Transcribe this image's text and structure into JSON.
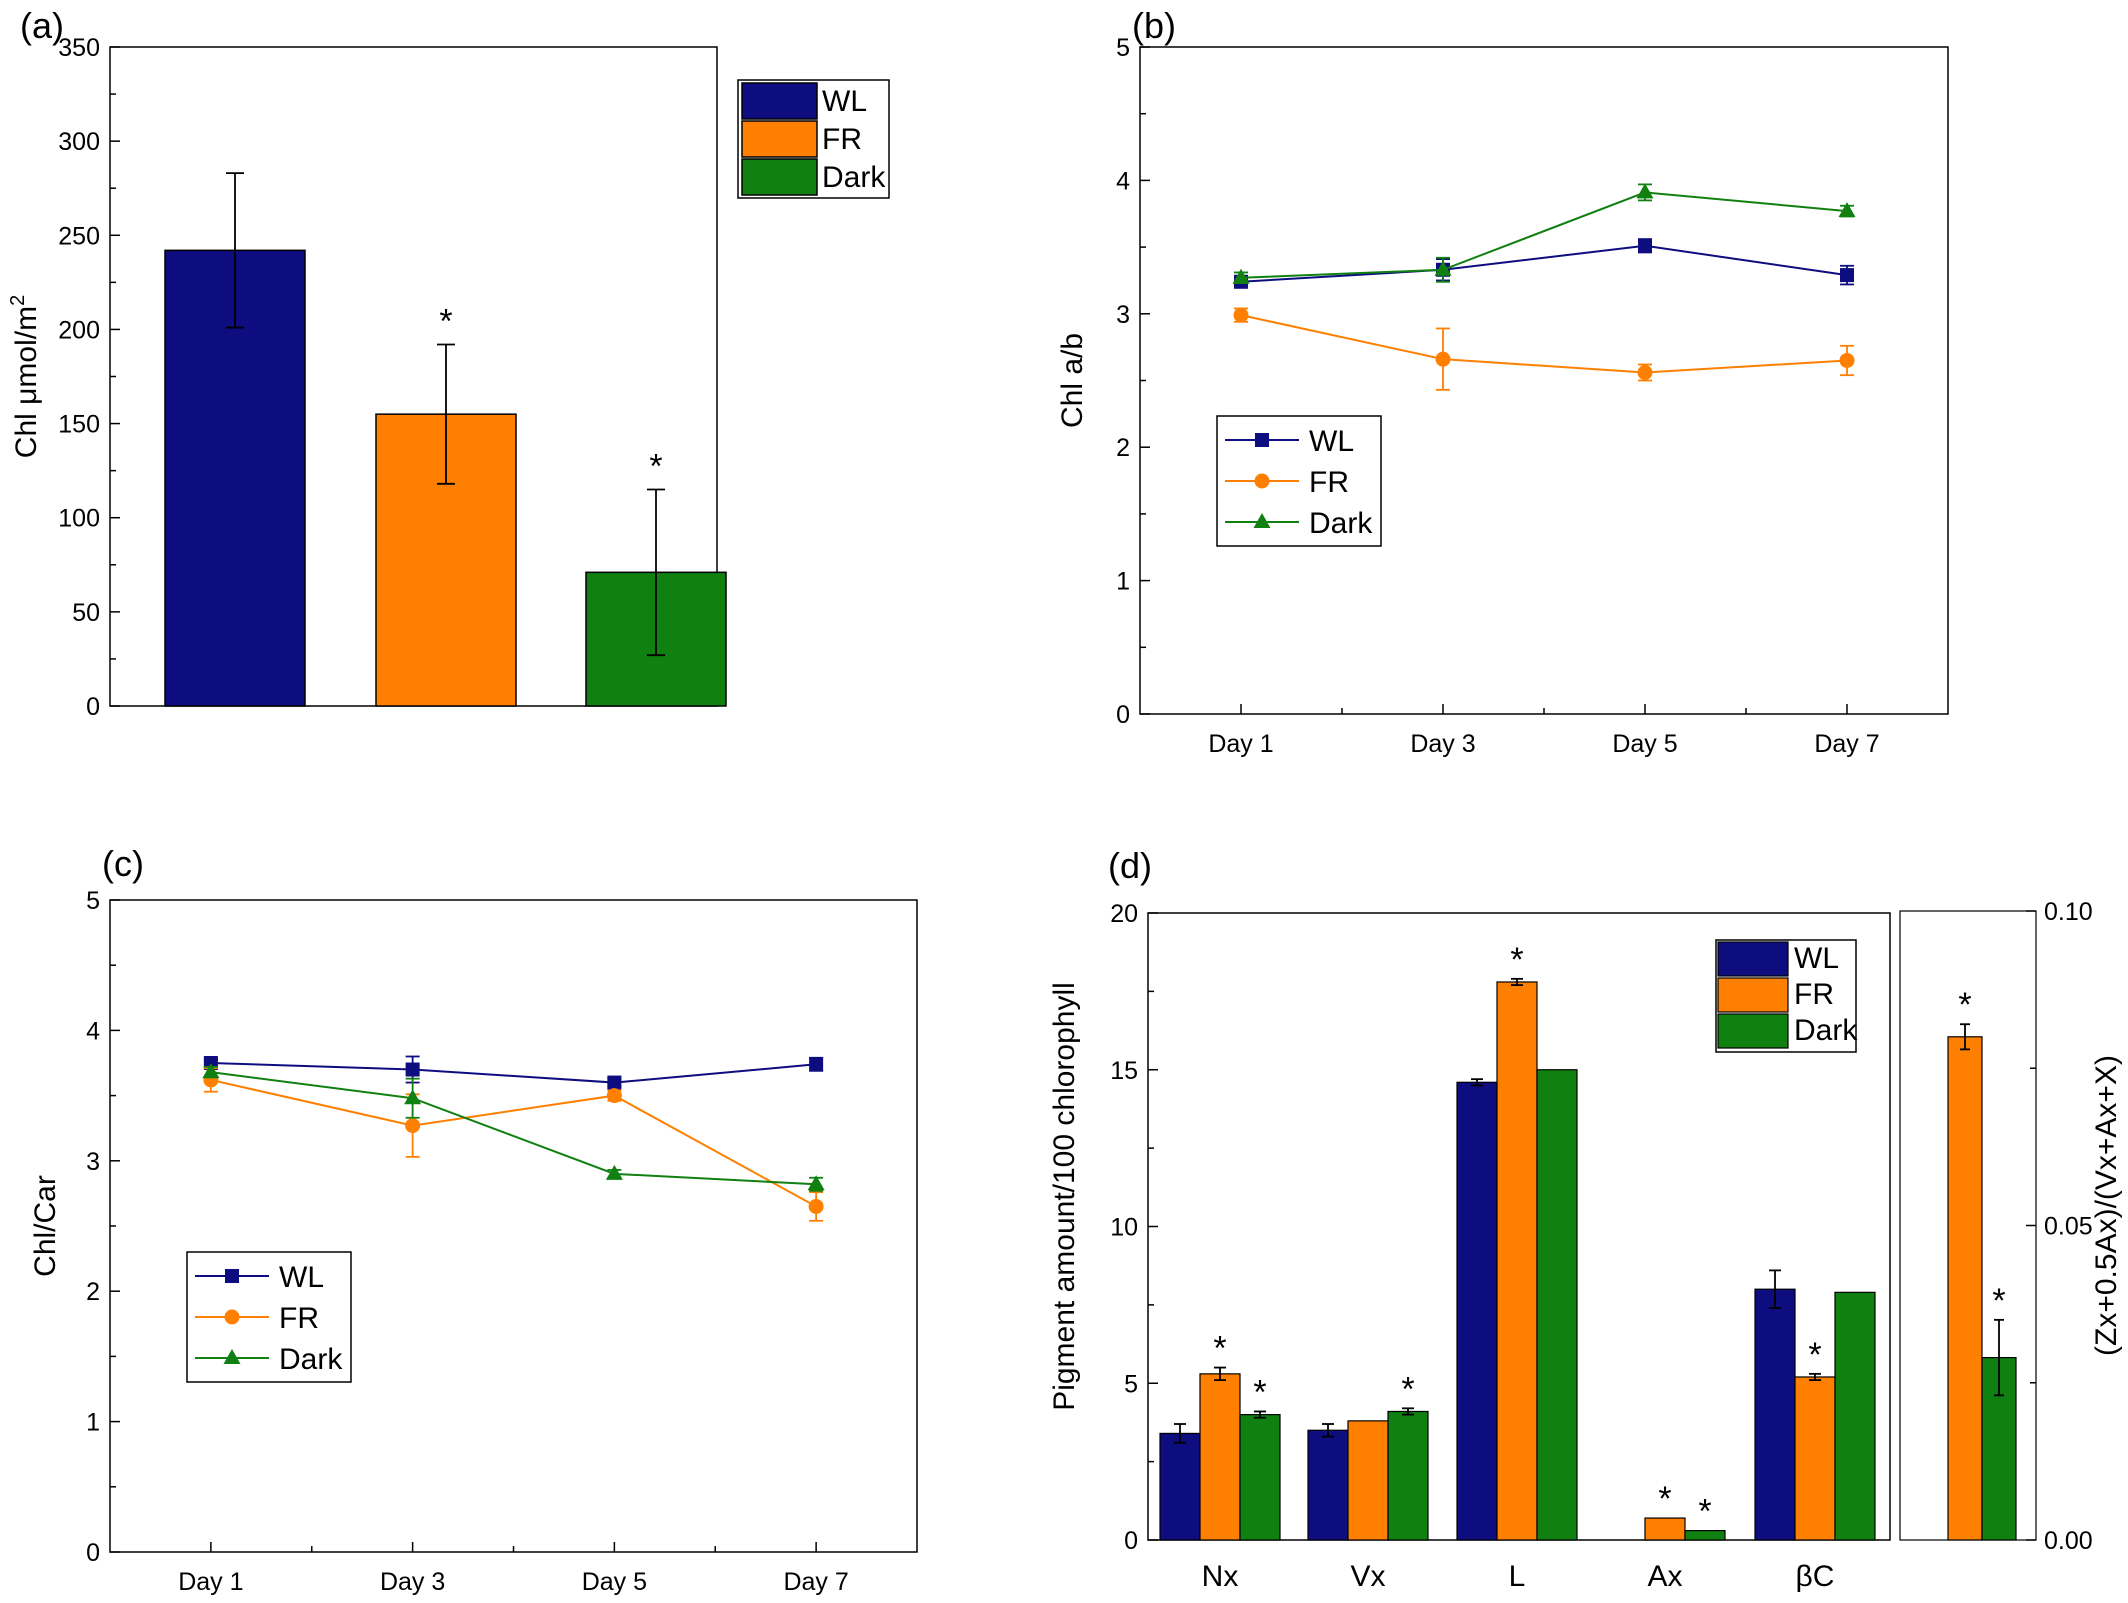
{
  "colors": {
    "WL": "#0d0d80",
    "FR": "#ff8000",
    "Dark": "#108010"
  },
  "chart_data": [
    {
      "id": "a",
      "panel_label": "(a)",
      "type": "bar",
      "ylabel": "Chl μmol/m",
      "ylabel_sup": "2",
      "ylim": [
        0,
        350
      ],
      "yticks": [
        "0",
        "50",
        "100",
        "150",
        "200",
        "250",
        "300",
        "350"
      ],
      "legend": [
        "WL",
        "FR",
        "Dark"
      ],
      "legend_position": "top-right",
      "series": [
        {
          "name": "WL",
          "value": 242,
          "err": 41,
          "mark": ""
        },
        {
          "name": "FR",
          "value": 155,
          "err": 37,
          "mark": "*"
        },
        {
          "name": "Dark",
          "value": 71,
          "err": 44,
          "mark": "*"
        }
      ]
    },
    {
      "id": "b",
      "panel_label": "(b)",
      "type": "line",
      "ylabel": "Chl a/b",
      "ylim": [
        0,
        5
      ],
      "yticks": [
        "0",
        "1",
        "2",
        "3",
        "4",
        "5"
      ],
      "categories": [
        "Day 1",
        "Day 3",
        "Day 5",
        "Day 7"
      ],
      "legend_position": "middle-left",
      "series": [
        {
          "name": "WL",
          "marker": "square",
          "values": [
            3.24,
            3.33,
            3.51,
            3.29
          ],
          "err": [
            0.04,
            0.08,
            0.05,
            0.07
          ]
        },
        {
          "name": "FR",
          "marker": "circle",
          "values": [
            2.99,
            2.66,
            2.56,
            2.65
          ],
          "err": [
            0.05,
            0.23,
            0.06,
            0.11
          ]
        },
        {
          "name": "Dark",
          "marker": "triangle",
          "values": [
            3.27,
            3.33,
            3.91,
            3.77
          ],
          "err": [
            0.04,
            0.09,
            0.06,
            0.04
          ]
        }
      ]
    },
    {
      "id": "c",
      "panel_label": "(c)",
      "type": "line",
      "ylabel": "Chl/Car",
      "ylim": [
        0,
        5
      ],
      "yticks": [
        "0",
        "1",
        "2",
        "3",
        "4",
        "5"
      ],
      "categories": [
        "Day 1",
        "Day 3",
        "Day 5",
        "Day 7"
      ],
      "legend_position": "middle-left",
      "series": [
        {
          "name": "WL",
          "marker": "square",
          "values": [
            3.75,
            3.7,
            3.6,
            3.74
          ],
          "err": [
            0.03,
            0.1,
            0.03,
            0.05
          ]
        },
        {
          "name": "FR",
          "marker": "circle",
          "values": [
            3.62,
            3.27,
            3.5,
            2.65
          ],
          "err": [
            0.09,
            0.24,
            0.04,
            0.11
          ]
        },
        {
          "name": "Dark",
          "marker": "triangle",
          "values": [
            3.68,
            3.48,
            2.9,
            2.82
          ],
          "err": [
            0.04,
            0.15,
            0.03,
            0.05
          ]
        }
      ]
    },
    {
      "id": "d",
      "panel_label": "(d)",
      "type": "bar",
      "ylabel": "Pigment amount/100 chlorophyll",
      "ylim": [
        0,
        20
      ],
      "yticks": [
        "0",
        "5",
        "10",
        "15",
        "20"
      ],
      "categories": [
        "Nx",
        "Vx",
        "L",
        "Ax",
        "βC"
      ],
      "legend": [
        "WL",
        "FR",
        "Dark"
      ],
      "legend_position": "top-right",
      "series": [
        {
          "name": "WL",
          "values": [
            3.4,
            3.5,
            14.6,
            0,
            8.0
          ],
          "err": [
            0.3,
            0.2,
            0.1,
            0,
            0.6
          ],
          "marks": [
            "",
            "",
            "",
            "",
            ""
          ]
        },
        {
          "name": "FR",
          "values": [
            5.3,
            3.8,
            17.8,
            0.7,
            5.2
          ],
          "err": [
            0.2,
            0,
            0.1,
            0,
            0.1
          ],
          "marks": [
            "*",
            "",
            "*",
            "*",
            "*"
          ]
        },
        {
          "name": "Dark",
          "values": [
            4.0,
            4.1,
            15.0,
            0.3,
            7.9
          ],
          "err": [
            0.1,
            0.1,
            0,
            0,
            0
          ],
          "marks": [
            "*",
            "*",
            "",
            "*",
            ""
          ]
        }
      ],
      "inset": {
        "type": "bar",
        "ylabel": "(Zx+0.5Ax)/(Vx+Ax+X)",
        "ylim": [
          0,
          0.1
        ],
        "yticks": [
          "0.00",
          "0.05",
          "0.10"
        ],
        "series": [
          {
            "name": "FR",
            "value": 0.08,
            "err": 0.002,
            "mark": "*"
          },
          {
            "name": "Dark",
            "value": 0.029,
            "err": 0.006,
            "mark": "*"
          }
        ]
      }
    }
  ]
}
